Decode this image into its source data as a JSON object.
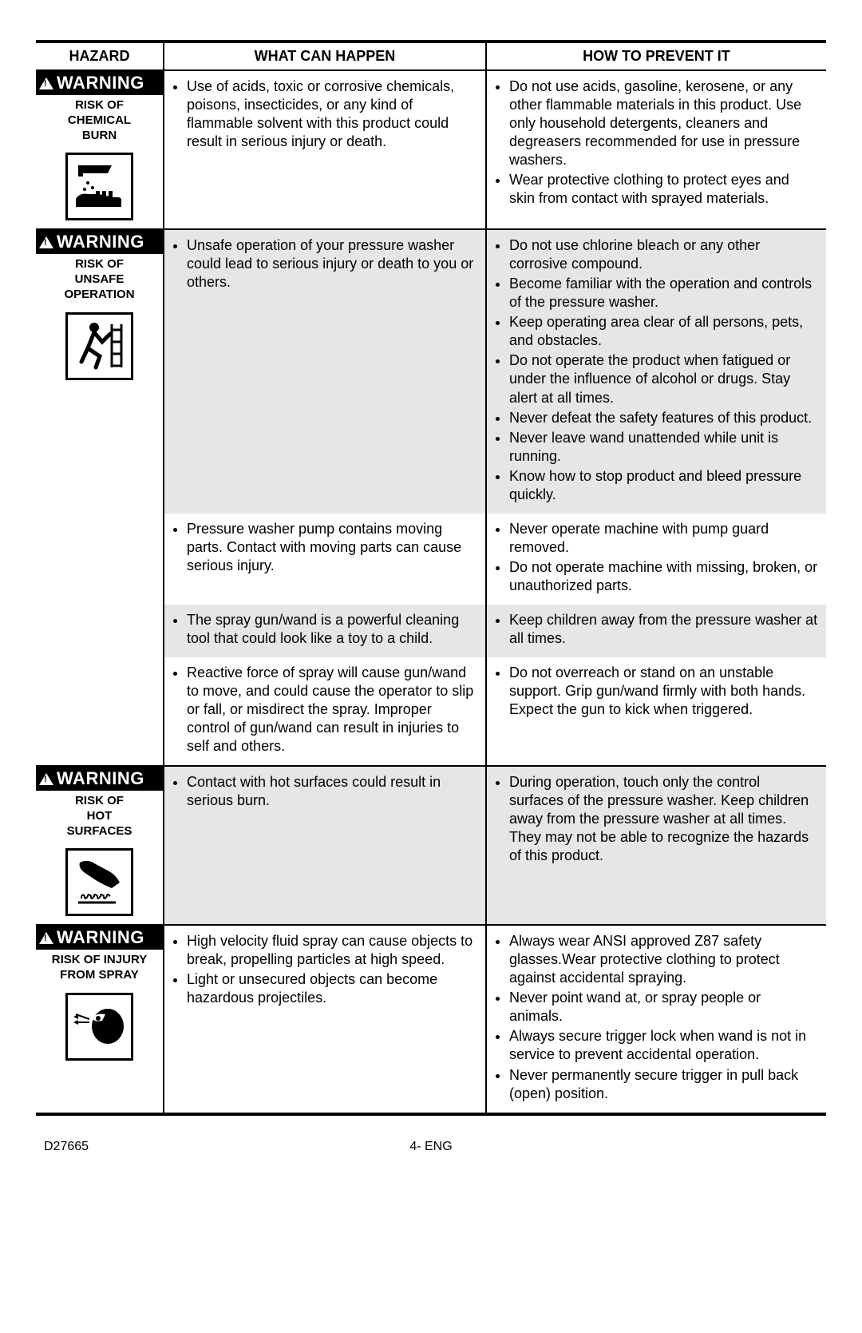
{
  "headers": {
    "hazard": "HAZARD",
    "what": "WHAT CAN HAPPEN",
    "prevent": "HOW TO PREVENT IT"
  },
  "warning_label": "WARNING",
  "hazards": [
    {
      "risk_lines": [
        "RISK OF",
        "CHEMICAL",
        "BURN"
      ],
      "icon": "chemical-burn",
      "rows": [
        {
          "bg": "bg-white",
          "what": [
            "Use of acids, toxic or corrosive chemicals, poisons, insecticides, or any kind of flammable solvent with this product could result in serious injury or death."
          ],
          "prevent": [
            "Do not use acids, gasoline, kero­sene, or any other flammable materials in this product. Use only household detergents, cleaners and degreasers recommended for use in pressure washers.",
            "Wear protective clothing to protect eyes and skin from contact with sprayed materials."
          ]
        }
      ]
    },
    {
      "risk_lines": [
        "RISK OF",
        "UNSAFE",
        "OPERATION"
      ],
      "icon": "unsafe-operation",
      "rows": [
        {
          "bg": "bg-gray",
          "what": [
            "Unsafe operation of your pressure washer could lead to serious injury or death to you or others."
          ],
          "prevent": [
            "Do not use chlorine bleach or any other corrosive compound.",
            "Become familiar with the operation and controls of the pressure washer.",
            "Keep operating area clear of all persons, pets, and obstacles.",
            "Do not operate the product when fatigued or under the influence of alcohol or drugs. Stay alert at all times.",
            "Never defeat the safety features of this product.",
            "Never leave wand unattended while unit is running.",
            "Know how to stop product and bleed pressure quickly."
          ]
        },
        {
          "bg": "bg-white",
          "what": [
            "Pressure washer pump contains moving parts. Contact with moving parts can cause serious injury."
          ],
          "prevent": [
            "Never operate machine with pump guard removed.",
            "Do not operate machine with missing, broken, or unauthorized parts."
          ]
        },
        {
          "bg": "bg-gray",
          "what": [
            "The spray gun/wand is a powerful cleaning tool that could look like a toy to a child."
          ],
          "prevent": [
            "Keep children away from the pressure washer at all times."
          ]
        },
        {
          "bg": "bg-white",
          "what": [
            "Reactive force of spray will cause gun/wand to move, and could cause the operator to slip or fall, or misdirect the spray. Improper control of gun/wand can result in injuries to self and others."
          ],
          "prevent": [
            "Do not overreach or stand on an unstable support. Grip gun/wand firmly with both hands. Expect the gun to kick when triggered."
          ]
        }
      ]
    },
    {
      "risk_lines": [
        "RISK OF",
        "HOT",
        "SURFACES"
      ],
      "icon": "hot-surfaces",
      "rows": [
        {
          "bg": "bg-gray",
          "what": [
            "Contact with hot surfaces could result in serious burn."
          ],
          "prevent": [
            "During operation, touch only the control surfaces of the pressure washer. Keep children away from the pressure washer at all times. They may not be able to recognize the hazards of this product."
          ]
        }
      ]
    },
    {
      "risk_lines": [
        "RISK OF INJURY",
        "FROM SPRAY"
      ],
      "icon": "injury-spray",
      "rows": [
        {
          "bg": "bg-white",
          "what": [
            "High velocity fluid spray can cause objects to break, propelling particles at high speed.",
            "Light or unsecured objects can become hazardous projectiles."
          ],
          "prevent": [
            "Always wear ANSI approved Z87 safety glasses.Wear protective clothing to protect against accidental spraying.",
            "Never point wand at, or spray people or animals.",
            "Always secure trigger lock when wand is not in service to prevent accidental operation.",
            "Never permanently secure trigger in pull back (open) position."
          ]
        }
      ]
    }
  ],
  "footer": {
    "left": "D27665",
    "center": "4- ENG"
  }
}
